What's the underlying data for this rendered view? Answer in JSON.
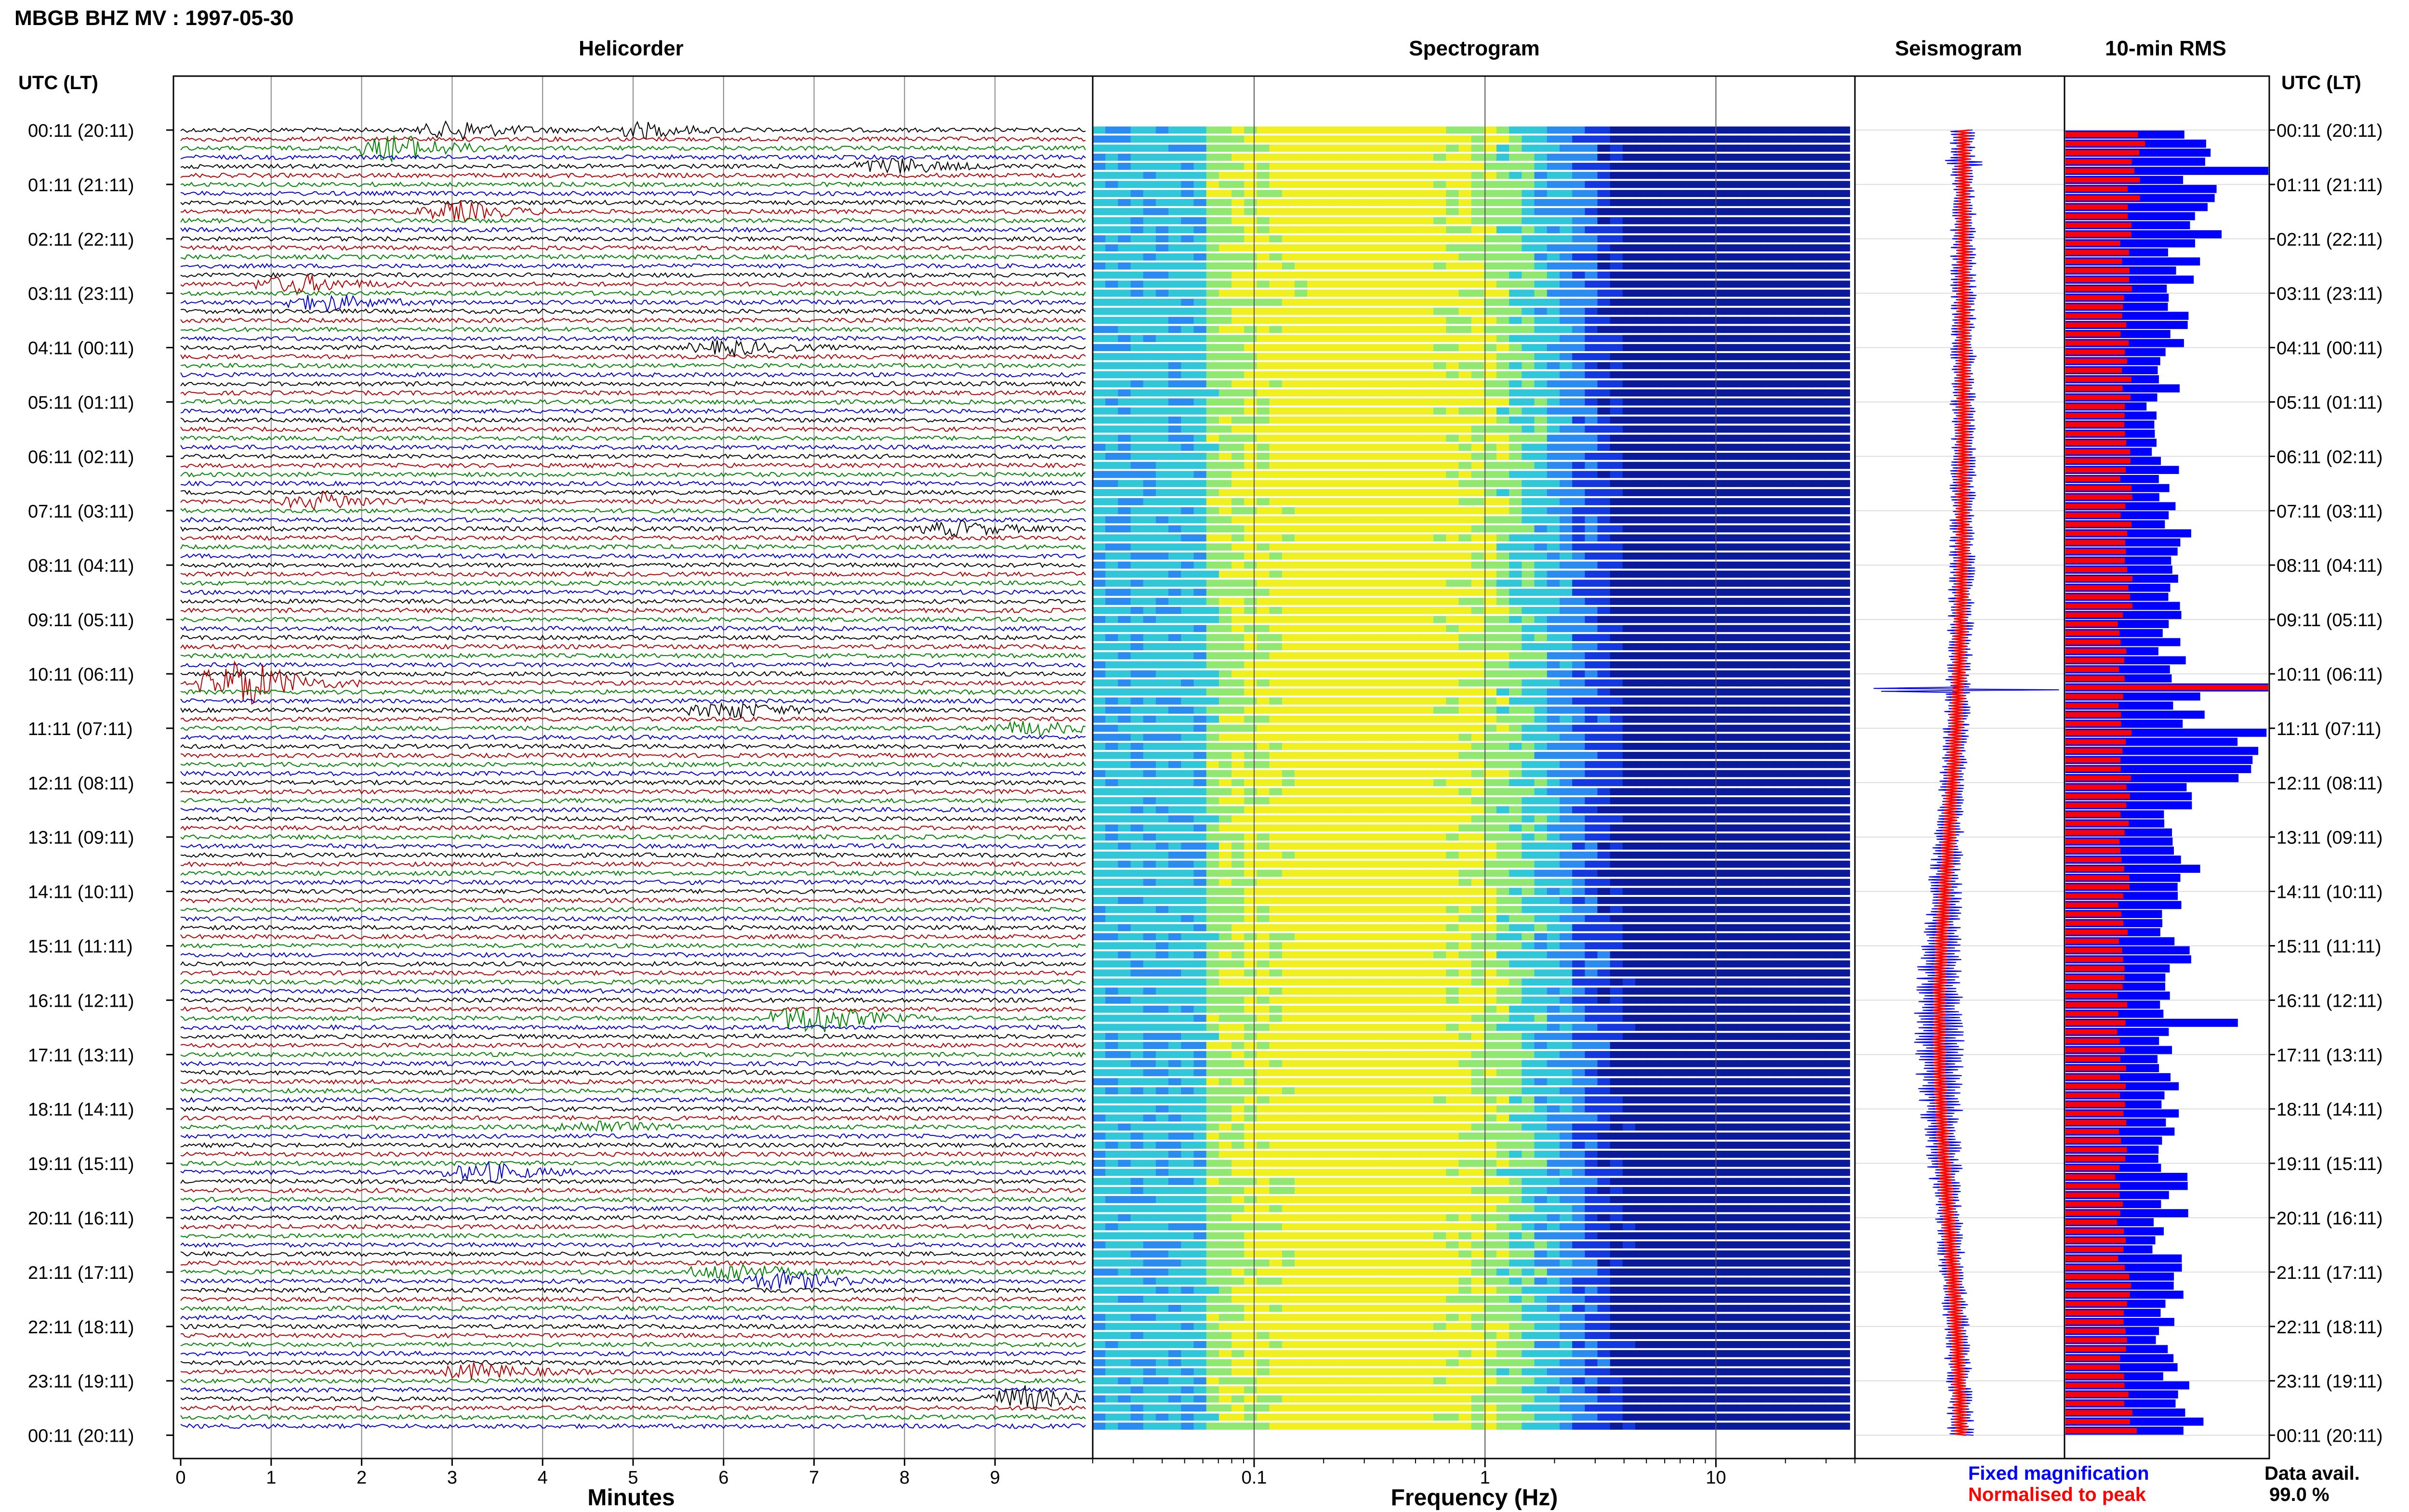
{
  "header": {
    "title": "MBGB BHZ MV : 1997-05-30",
    "utc_label_left": "UTC (LT)",
    "utc_label_right": "UTC (LT)"
  },
  "panels": {
    "helicorder": "Helicorder",
    "spectrogram": "Spectrogram",
    "seismogram": "Seismogram",
    "rms": "10-min RMS"
  },
  "axes": {
    "minutes_label": "Minutes",
    "frequency_label": "Frequency (Hz)",
    "minute_ticks": [
      "0",
      "1",
      "2",
      "3",
      "4",
      "5",
      "6",
      "7",
      "8",
      "9"
    ],
    "frequency_ticks": [
      "0.1",
      "1",
      "10"
    ]
  },
  "legend": {
    "fixed": "Fixed magnification",
    "normalised": "Normalised to peak",
    "fixed_color": "#0000ff",
    "normalised_color": "#ff0000"
  },
  "data_avail": {
    "label": "Data avail.",
    "value": "99.0 %"
  },
  "chart_data": {
    "type": "heatmap",
    "title": "MBGB BHZ MV : 1997-05-30",
    "time_labels": [
      "00:11 (20:11)",
      "01:11 (21:11)",
      "02:11 (22:11)",
      "03:11 (23:11)",
      "04:11 (00:11)",
      "05:11 (01:11)",
      "06:11 (02:11)",
      "07:11 (03:11)",
      "08:11 (04:11)",
      "09:11 (05:11)",
      "10:11 (06:11)",
      "11:11 (07:11)",
      "12:11 (08:11)",
      "13:11 (09:11)",
      "14:11 (10:11)",
      "15:11 (11:11)",
      "16:11 (12:11)",
      "17:11 (13:11)",
      "18:11 (14:11)",
      "19:11 (15:11)",
      "20:11 (16:11)",
      "21:11 (17:11)",
      "22:11 (18:11)",
      "23:11 (19:11)",
      "00:11 (20:11)"
    ],
    "helicorder": {
      "xlim": [
        0,
        10
      ],
      "xlabel": "Minutes",
      "trace_colors": [
        "#000000",
        "#b00000",
        "#008000",
        "#0000cc"
      ],
      "events": [
        {
          "hour": 0.0,
          "minute": 3.0,
          "amp": 0.9
        },
        {
          "hour": 0.0,
          "minute": 5.0,
          "amp": 0.7
        },
        {
          "hour": 0.3,
          "minute": 2.3,
          "amp": 1.4
        },
        {
          "hour": 0.7,
          "minute": 7.8,
          "amp": 0.8
        },
        {
          "hour": 1.5,
          "minute": 3.0,
          "amp": 0.9
        },
        {
          "hour": 2.9,
          "minute": 1.2,
          "amp": 0.9
        },
        {
          "hour": 3.2,
          "minute": 1.5,
          "amp": 0.8
        },
        {
          "hour": 4.0,
          "minute": 6.0,
          "amp": 0.7
        },
        {
          "hour": 6.9,
          "minute": 1.5,
          "amp": 0.8
        },
        {
          "hour": 7.3,
          "minute": 8.5,
          "amp": 0.7
        },
        {
          "hour": 10.2,
          "minute": 0.6,
          "amp": 2.5
        },
        {
          "hour": 10.6,
          "minute": 6.0,
          "amp": 0.8
        },
        {
          "hour": 11.0,
          "minute": 9.3,
          "amp": 0.7
        },
        {
          "hour": 16.3,
          "minute": 6.9,
          "amp": 1.6
        },
        {
          "hour": 18.4,
          "minute": 4.5,
          "amp": 0.6
        },
        {
          "hour": 19.2,
          "minute": 3.3,
          "amp": 0.9
        },
        {
          "hour": 21.0,
          "minute": 6.0,
          "amp": 0.9
        },
        {
          "hour": 21.2,
          "minute": 6.6,
          "amp": 0.9
        },
        {
          "hour": 22.8,
          "minute": 3.2,
          "amp": 0.8
        },
        {
          "hour": 23.4,
          "minute": 9.2,
          "amp": 1.2
        }
      ]
    },
    "spectrogram": {
      "xscale": "log",
      "xlim": [
        0.02,
        40
      ],
      "xlabel": "Frequency (Hz)",
      "peak_hz": 0.3,
      "colormap": [
        "#0a1a9a",
        "#1438e0",
        "#2a8cf0",
        "#30c8d8",
        "#90e870",
        "#f0f020"
      ]
    },
    "seismogram": {
      "series": [
        {
          "name": "Fixed magnification",
          "color": "#0000ff"
        },
        {
          "name": "Normalised to peak",
          "color": "#ff0000"
        }
      ]
    },
    "rms": {
      "hours": [
        0,
        1,
        2,
        3,
        4,
        5,
        6,
        7,
        8,
        9,
        10,
        11,
        12,
        13,
        14,
        15,
        16,
        17,
        18,
        19,
        20,
        21,
        22,
        23
      ],
      "fixed_magnification_rel": [
        0.65,
        0.72,
        0.58,
        0.55,
        0.52,
        0.45,
        0.5,
        0.55,
        0.5,
        0.52,
        0.6,
        0.9,
        0.55,
        0.58,
        0.55,
        0.57,
        0.52,
        0.5,
        0.53,
        0.55,
        0.5,
        0.55,
        0.52,
        0.6
      ],
      "normalised_rel": [
        0.36,
        0.34,
        0.3,
        0.3,
        0.3,
        0.3,
        0.3,
        0.3,
        0.31,
        0.28,
        0.29,
        0.3,
        0.3,
        0.29,
        0.28,
        0.27,
        0.28,
        0.28,
        0.28,
        0.27,
        0.28,
        0.3,
        0.29,
        0.32
      ]
    }
  }
}
